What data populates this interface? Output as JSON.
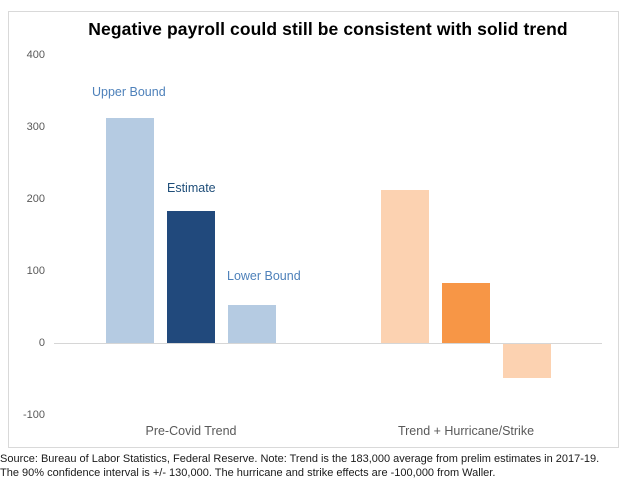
{
  "title": "Negative payroll could still be consistent with solid trend",
  "source_note": "Source: Bureau of Labor Statistics, Federal Reserve. Note: Trend is the 183,000 average from prelim estimates in 2017-19. The 90% confidence interval is +/- 130,000. The hurricane and strike effects are -100,000 from Waller.",
  "colors": {
    "light_blue": "#b5cbe2",
    "dark_blue": "#21497c",
    "light_orange": "#fcd2b1",
    "orange": "#f79646",
    "annotation_blue": "#4e81ba",
    "annotation_dark_blue": "#1f4e79",
    "axis_text": "#595959",
    "axis_line": "#d6d6d6",
    "frame_border": "#d9d9d9"
  },
  "chart_data": {
    "type": "bar",
    "title": "Negative payroll could still be consistent with solid trend",
    "xlabel": "",
    "ylabel": "",
    "ylim": [
      -100,
      400
    ],
    "yticks": [
      400,
      300,
      200,
      100,
      0,
      -100
    ],
    "grid": false,
    "legend": "none (bars labeled with annotations)",
    "categories": [
      "Pre-Covid Trend",
      "Trend + Hurricane/Strike"
    ],
    "groups": [
      {
        "category": "Pre-Covid Trend",
        "bars": [
          {
            "label": "Upper Bound",
            "value": 313,
            "color": "#b5cbe2",
            "label_color": "#4e81ba"
          },
          {
            "label": "Estimate",
            "value": 183,
            "color": "#21497c",
            "label_color": "#1f4e79"
          },
          {
            "label": "Lower Bound",
            "value": 53,
            "color": "#b5cbe2",
            "label_color": "#4e81ba"
          }
        ]
      },
      {
        "category": "Trend + Hurricane/Strike",
        "bars": [
          {
            "label": "",
            "value": 213,
            "color": "#fcd2b1"
          },
          {
            "label": "",
            "value": 83,
            "color": "#f79646"
          },
          {
            "label": "",
            "value": -47,
            "color": "#fcd2b1"
          }
        ]
      }
    ]
  }
}
